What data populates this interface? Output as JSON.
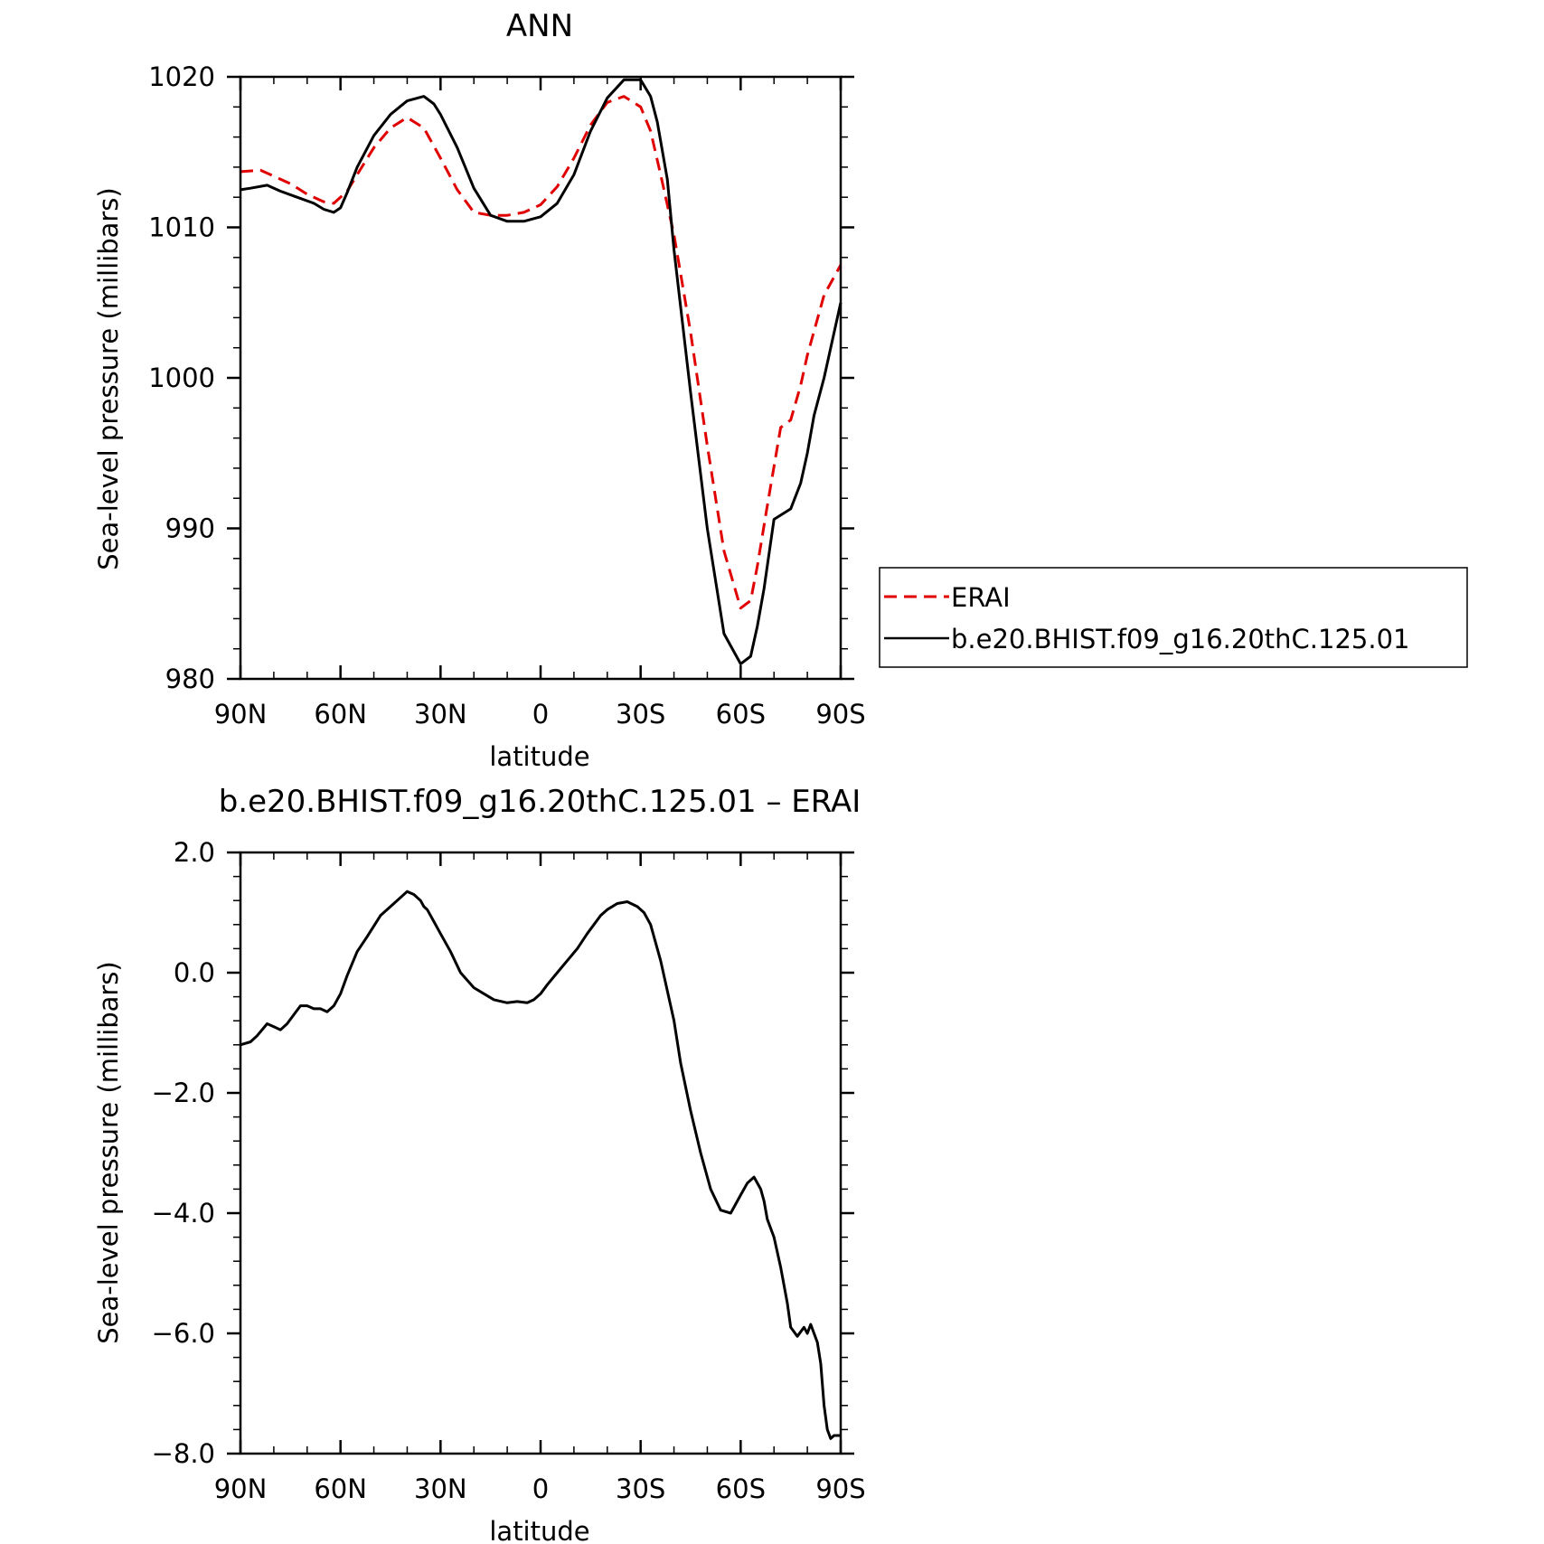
{
  "chart_data": [
    {
      "type": "line",
      "title": "ANN",
      "xlabel": "latitude",
      "ylabel": "Sea-level pressure (millibars)",
      "xlim": [
        90,
        -90
      ],
      "ylim": [
        980,
        1020
      ],
      "x_tick_values": [
        90,
        60,
        30,
        0,
        -30,
        -60,
        -90
      ],
      "x_tick_labels": [
        "90N",
        "60N",
        "30N",
        "0",
        "30S",
        "60S",
        "90S"
      ],
      "y_tick_values": [
        980,
        990,
        1000,
        1010,
        1020
      ],
      "y_tick_labels": [
        "980",
        "990",
        "1000",
        "1010",
        "1020"
      ],
      "grid": false,
      "legend_position": "right-outside",
      "series": [
        {
          "name": "ERAI",
          "color": "#e00000",
          "dash": "dashed",
          "x": [
            90,
            84,
            80,
            75,
            70,
            65,
            62,
            58,
            55,
            50,
            45,
            40,
            35,
            30,
            25,
            20,
            15,
            10,
            5,
            0,
            -5,
            -10,
            -15,
            -20,
            -25,
            -30,
            -33,
            -36,
            -40,
            -45,
            -50,
            -55,
            -60,
            -63,
            -65,
            -68,
            -72,
            -75,
            -78,
            -80,
            -85,
            -90
          ],
          "values": [
            1013.7,
            1013.8,
            1013.4,
            1012.9,
            1012.2,
            1011.7,
            1011.6,
            1012.4,
            1013.5,
            1015.3,
            1016.6,
            1017.3,
            1016.6,
            1014.6,
            1012.5,
            1011.0,
            1010.8,
            1010.8,
            1011.0,
            1011.5,
            1012.7,
            1014.6,
            1016.8,
            1018.3,
            1018.7,
            1018.0,
            1016.4,
            1013.5,
            1009.5,
            1003.0,
            995.5,
            988.5,
            984.7,
            985.2,
            987.5,
            991.5,
            996.7,
            997.2,
            999.5,
            1001.5,
            1005.5,
            1007.5
          ]
        },
        {
          "name": "b.e20.BHIST.f09_g16.20thC.125.01",
          "color": "#000000",
          "dash": "solid",
          "x": [
            90,
            87,
            82,
            78,
            73,
            68,
            65,
            62,
            60,
            58,
            55,
            50,
            45,
            40,
            35,
            32,
            30,
            25,
            20,
            15,
            10,
            5,
            0,
            -5,
            -10,
            -15,
            -20,
            -25,
            -30,
            -33,
            -35,
            -38,
            -40,
            -45,
            -50,
            -55,
            -60,
            -63,
            -65,
            -67,
            -70,
            -75,
            -78,
            -80,
            -82,
            -85,
            -90
          ],
          "values": [
            1012.5,
            1012.6,
            1012.8,
            1012.4,
            1012.0,
            1011.6,
            1011.2,
            1011.0,
            1011.3,
            1012.3,
            1014.0,
            1016.1,
            1017.5,
            1018.4,
            1018.7,
            1018.2,
            1017.5,
            1015.3,
            1012.6,
            1010.8,
            1010.4,
            1010.4,
            1010.7,
            1011.6,
            1013.5,
            1016.4,
            1018.6,
            1019.8,
            1019.8,
            1018.7,
            1017.0,
            1013.2,
            1008.5,
            999.0,
            990.0,
            983.0,
            981.0,
            981.5,
            983.5,
            986.0,
            990.6,
            991.3,
            993.0,
            995.0,
            997.5,
            1000.0,
            1005.0
          ]
        }
      ]
    },
    {
      "type": "line",
      "title": "b.e20.BHIST.f09_g16.20thC.125.01 – ERAI",
      "xlabel": "latitude",
      "ylabel": "Sea-level pressure (millibars)",
      "xlim": [
        90,
        -90
      ],
      "ylim": [
        -8,
        2
      ],
      "x_tick_values": [
        90,
        60,
        30,
        0,
        -30,
        -60,
        -90
      ],
      "x_tick_labels": [
        "90N",
        "60N",
        "30N",
        "0",
        "30S",
        "60S",
        "90S"
      ],
      "y_tick_values": [
        2,
        0,
        -2,
        -4,
        -6,
        -8
      ],
      "y_tick_labels": [
        "2.0",
        "0.0",
        "−2.0",
        "−4.0",
        "−6.0",
        "−8.0"
      ],
      "grid": false,
      "series": [
        {
          "color": "#000000",
          "dash": "solid",
          "x": [
            90,
            87,
            85,
            82,
            80,
            78,
            76,
            74,
            72,
            70,
            68,
            66,
            64,
            62,
            60,
            58,
            55,
            52,
            48,
            44,
            40,
            38,
            36,
            35,
            34,
            32,
            30,
            27,
            24,
            20,
            17,
            14,
            10,
            7,
            4,
            2,
            0,
            -2,
            -5,
            -8,
            -11,
            -14,
            -16,
            -18,
            -20,
            -23,
            -26,
            -29,
            -31,
            -33,
            -34,
            -36,
            -38,
            -40,
            -42,
            -45,
            -48,
            -51,
            -54,
            -57,
            -60,
            -62,
            -64,
            -66,
            -67,
            -68,
            -70,
            -72,
            -74,
            -75,
            -77,
            -79,
            -80,
            -81,
            -82,
            -83,
            -84,
            -85,
            -86,
            -87,
            -88,
            -90
          ],
          "values": [
            -1.2,
            -1.15,
            -1.05,
            -0.85,
            -0.9,
            -0.95,
            -0.85,
            -0.7,
            -0.55,
            -0.55,
            -0.6,
            -0.6,
            -0.65,
            -0.55,
            -0.35,
            -0.05,
            0.35,
            0.6,
            0.95,
            1.15,
            1.35,
            1.3,
            1.2,
            1.1,
            1.05,
            0.85,
            0.65,
            0.35,
            0.0,
            -0.25,
            -0.35,
            -0.45,
            -0.5,
            -0.48,
            -0.5,
            -0.45,
            -0.35,
            -0.2,
            0.0,
            0.2,
            0.4,
            0.65,
            0.8,
            0.95,
            1.05,
            1.15,
            1.18,
            1.1,
            1.0,
            0.8,
            0.6,
            0.2,
            -0.3,
            -0.8,
            -1.5,
            -2.3,
            -3.0,
            -3.6,
            -3.95,
            -4.0,
            -3.7,
            -3.5,
            -3.4,
            -3.6,
            -3.8,
            -4.1,
            -4.4,
            -4.9,
            -5.5,
            -5.9,
            -6.05,
            -5.9,
            -6.0,
            -5.85,
            -6.0,
            -6.15,
            -6.5,
            -7.2,
            -7.6,
            -7.75,
            -7.7,
            -7.7
          ]
        }
      ]
    }
  ],
  "legend": {
    "entries": [
      "ERAI",
      "b.e20.BHIST.f09_g16.20thC.125.01"
    ]
  }
}
